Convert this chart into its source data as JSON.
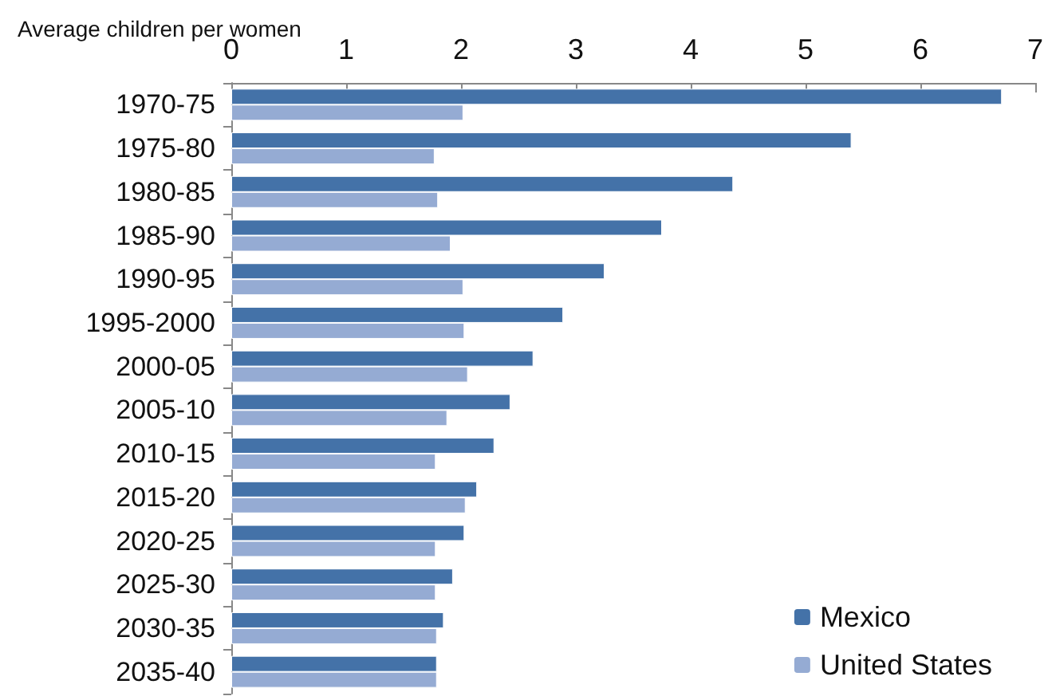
{
  "chart_data": {
    "type": "bar",
    "orientation": "horizontal",
    "title": "Average children per women",
    "categories": [
      "1970-75",
      "1975-80",
      "1980-85",
      "1985-90",
      "1990-95",
      "1995-2000",
      "2000-05",
      "2005-10",
      "2010-15",
      "2015-20",
      "2020-25",
      "2025-30",
      "2030-35",
      "2035-40"
    ],
    "series": [
      {
        "name": "Mexico",
        "color": "#4472a8",
        "values": [
          6.71,
          5.4,
          4.37,
          3.75,
          3.25,
          2.89,
          2.63,
          2.43,
          2.29,
          2.14,
          2.03,
          1.93,
          1.85,
          1.79
        ]
      },
      {
        "name": "United States",
        "color": "#95abd3",
        "values": [
          2.02,
          1.77,
          1.8,
          1.91,
          2.02,
          2.03,
          2.06,
          1.88,
          1.78,
          2.04,
          1.78,
          1.78,
          1.79,
          1.79
        ]
      }
    ],
    "xlim": [
      0,
      7
    ],
    "xticks": [
      0,
      1,
      2,
      3,
      4,
      5,
      6,
      7
    ],
    "grid": false,
    "legend": "bottom right"
  }
}
